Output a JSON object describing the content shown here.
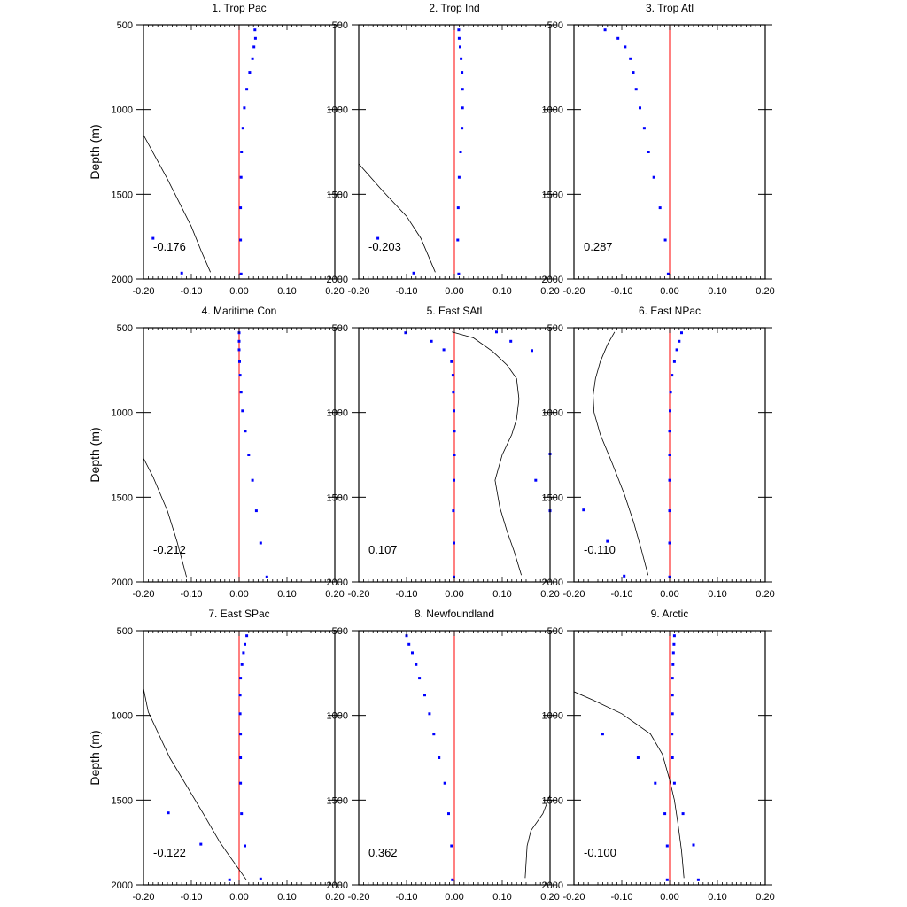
{
  "figure": {
    "ylabel": "Depth (m)",
    "colors": {
      "axes": "#000000",
      "dots": "#0000ff",
      "zero_line": "#ff0000",
      "curve": "#000000",
      "background": "#ffffff"
    },
    "xlim": [
      -0.2,
      0.2
    ],
    "ylim": [
      500,
      2000
    ],
    "y_inverted": true,
    "xticks": [
      "-0.20",
      "-0.10",
      "0.00",
      "0.10",
      "0.20"
    ],
    "yticks": [
      "500",
      "1000",
      "1500",
      "2000"
    ]
  },
  "chart_data": [
    {
      "type": "scatter",
      "title": "1. Trop Pac",
      "annotation": "-0.176",
      "dots": [
        [
          0.033,
          530
        ],
        [
          0.034,
          580
        ],
        [
          0.031,
          630
        ],
        [
          0.028,
          700
        ],
        [
          0.022,
          780
        ],
        [
          0.016,
          880
        ],
        [
          0.011,
          990
        ],
        [
          0.008,
          1110
        ],
        [
          0.005,
          1250
        ],
        [
          0.004,
          1400
        ],
        [
          0.003,
          1580
        ],
        [
          0.003,
          1770
        ],
        [
          0.004,
          1970
        ],
        [
          -0.18,
          1760
        ],
        [
          -0.12,
          1965
        ]
      ],
      "curve": [
        [
          -0.2,
          1150
        ],
        [
          -0.15,
          1410
        ],
        [
          -0.1,
          1690
        ],
        [
          -0.08,
          1830
        ],
        [
          -0.06,
          1960
        ]
      ]
    },
    {
      "type": "scatter",
      "title": "2. Trop Ind",
      "annotation": "-0.203",
      "dots": [
        [
          0.009,
          530
        ],
        [
          0.01,
          580
        ],
        [
          0.012,
          630
        ],
        [
          0.014,
          700
        ],
        [
          0.016,
          780
        ],
        [
          0.017,
          880
        ],
        [
          0.017,
          990
        ],
        [
          0.016,
          1110
        ],
        [
          0.013,
          1250
        ],
        [
          0.01,
          1400
        ],
        [
          0.008,
          1580
        ],
        [
          0.007,
          1770
        ],
        [
          0.009,
          1970
        ],
        [
          -0.16,
          1760
        ],
        [
          -0.085,
          1965
        ]
      ],
      "curve": [
        [
          -0.2,
          1320
        ],
        [
          -0.15,
          1480
        ],
        [
          -0.1,
          1630
        ],
        [
          -0.07,
          1760
        ],
        [
          -0.04,
          1960
        ]
      ]
    },
    {
      "type": "scatter",
      "title": "3. Trop Atl",
      "annotation": "0.287",
      "dots": [
        [
          -0.135,
          530
        ],
        [
          -0.108,
          580
        ],
        [
          -0.093,
          630
        ],
        [
          -0.082,
          700
        ],
        [
          -0.076,
          780
        ],
        [
          -0.07,
          880
        ],
        [
          -0.062,
          990
        ],
        [
          -0.053,
          1110
        ],
        [
          -0.044,
          1250
        ],
        [
          -0.033,
          1400
        ],
        [
          -0.02,
          1580
        ],
        [
          -0.009,
          1770
        ],
        [
          -0.003,
          1970
        ]
      ],
      "curve": []
    },
    {
      "type": "scatter",
      "title": "4. Maritime Con",
      "annotation": "-0.212",
      "dots": [
        [
          0.0,
          530
        ],
        [
          0.0,
          580
        ],
        [
          0.0,
          630
        ],
        [
          0.001,
          700
        ],
        [
          0.002,
          780
        ],
        [
          0.004,
          880
        ],
        [
          0.007,
          990
        ],
        [
          0.013,
          1110
        ],
        [
          0.02,
          1250
        ],
        [
          0.028,
          1400
        ],
        [
          0.036,
          1580
        ],
        [
          0.045,
          1770
        ],
        [
          0.058,
          1970
        ]
      ],
      "curve": [
        [
          -0.2,
          1270
        ],
        [
          -0.18,
          1380
        ],
        [
          -0.15,
          1580
        ],
        [
          -0.13,
          1760
        ],
        [
          -0.11,
          1970
        ]
      ]
    },
    {
      "type": "scatter",
      "title": "5. East SAtl",
      "annotation": "0.107",
      "dots": [
        [
          -0.102,
          530
        ],
        [
          -0.048,
          580
        ],
        [
          -0.022,
          630
        ],
        [
          -0.006,
          700
        ],
        [
          -0.003,
          780
        ],
        [
          -0.002,
          880
        ],
        [
          -0.001,
          990
        ],
        [
          0.0,
          1110
        ],
        [
          0.0,
          1250
        ],
        [
          -0.001,
          1400
        ],
        [
          -0.002,
          1580
        ],
        [
          -0.001,
          1770
        ],
        [
          -0.001,
          1970
        ],
        [
          0.088,
          525
        ],
        [
          0.118,
          580
        ],
        [
          0.162,
          635
        ],
        [
          0.2,
          1245
        ],
        [
          0.17,
          1400
        ],
        [
          0.2,
          1580
        ]
      ],
      "curve": [
        [
          -0.005,
          525
        ],
        [
          0.04,
          560
        ],
        [
          0.08,
          640
        ],
        [
          0.11,
          720
        ],
        [
          0.13,
          800
        ],
        [
          0.135,
          920
        ],
        [
          0.13,
          1040
        ],
        [
          0.12,
          1130
        ],
        [
          0.1,
          1250
        ],
        [
          0.085,
          1400
        ],
        [
          0.095,
          1560
        ],
        [
          0.11,
          1700
        ],
        [
          0.125,
          1820
        ],
        [
          0.14,
          1960
        ]
      ]
    },
    {
      "type": "scatter",
      "title": "6. East NPac",
      "annotation": "-0.110",
      "dots": [
        [
          0.025,
          530
        ],
        [
          0.02,
          580
        ],
        [
          0.015,
          630
        ],
        [
          0.01,
          700
        ],
        [
          0.005,
          780
        ],
        [
          0.002,
          880
        ],
        [
          0.001,
          990
        ],
        [
          0.0,
          1110
        ],
        [
          0.0,
          1250
        ],
        [
          0.0,
          1400
        ],
        [
          0.0,
          1580
        ],
        [
          0.0,
          1770
        ],
        [
          0.0,
          1970
        ],
        [
          -0.18,
          1575
        ],
        [
          -0.13,
          1760
        ],
        [
          -0.095,
          1965
        ]
      ],
      "curve": [
        [
          -0.115,
          525
        ],
        [
          -0.13,
          600
        ],
        [
          -0.145,
          700
        ],
        [
          -0.155,
          800
        ],
        [
          -0.16,
          900
        ],
        [
          -0.158,
          1000
        ],
        [
          -0.145,
          1130
        ],
        [
          -0.12,
          1300
        ],
        [
          -0.095,
          1480
        ],
        [
          -0.075,
          1650
        ],
        [
          -0.06,
          1800
        ],
        [
          -0.045,
          1960
        ]
      ]
    },
    {
      "type": "scatter",
      "title": "7. East SPac",
      "annotation": "-0.122",
      "dots": [
        [
          0.016,
          530
        ],
        [
          0.012,
          580
        ],
        [
          0.009,
          630
        ],
        [
          0.006,
          700
        ],
        [
          0.003,
          780
        ],
        [
          0.002,
          880
        ],
        [
          0.002,
          990
        ],
        [
          0.003,
          1110
        ],
        [
          0.003,
          1250
        ],
        [
          0.003,
          1400
        ],
        [
          0.005,
          1580
        ],
        [
          0.012,
          1770
        ],
        [
          0.045,
          1965
        ],
        [
          -0.148,
          1575
        ],
        [
          -0.08,
          1760
        ],
        [
          -0.02,
          1970
        ]
      ],
      "curve": [
        [
          -0.2,
          840
        ],
        [
          -0.19,
          980
        ],
        [
          -0.145,
          1250
        ],
        [
          -0.075,
          1580
        ],
        [
          -0.04,
          1750
        ],
        [
          0.015,
          1970
        ]
      ]
    },
    {
      "type": "scatter",
      "title": "8. Newfoundland",
      "annotation": "0.362",
      "dots": [
        [
          -0.1,
          530
        ],
        [
          -0.095,
          580
        ],
        [
          -0.088,
          630
        ],
        [
          -0.08,
          700
        ],
        [
          -0.073,
          780
        ],
        [
          -0.062,
          880
        ],
        [
          -0.052,
          990
        ],
        [
          -0.043,
          1110
        ],
        [
          -0.032,
          1250
        ],
        [
          -0.02,
          1400
        ],
        [
          -0.012,
          1580
        ],
        [
          -0.006,
          1770
        ],
        [
          -0.004,
          1970
        ]
      ],
      "curve": [
        [
          0.2,
          1470
        ],
        [
          0.185,
          1580
        ],
        [
          0.16,
          1680
        ],
        [
          0.152,
          1770
        ],
        [
          0.148,
          1960
        ]
      ]
    },
    {
      "type": "scatter",
      "title": "9. Arctic",
      "annotation": "-0.100",
      "dots": [
        [
          0.01,
          530
        ],
        [
          0.009,
          580
        ],
        [
          0.008,
          630
        ],
        [
          0.007,
          700
        ],
        [
          0.006,
          780
        ],
        [
          0.006,
          880
        ],
        [
          0.006,
          990
        ],
        [
          0.005,
          1110
        ],
        [
          0.006,
          1250
        ],
        [
          0.01,
          1400
        ],
        [
          0.028,
          1580
        ],
        [
          0.05,
          1765
        ],
        [
          0.06,
          1970
        ],
        [
          -0.14,
          1110
        ],
        [
          -0.066,
          1250
        ],
        [
          -0.03,
          1400
        ],
        [
          -0.01,
          1580
        ],
        [
          -0.005,
          1770
        ],
        [
          -0.005,
          1970
        ]
      ],
      "curve": [
        [
          -0.2,
          860
        ],
        [
          -0.16,
          910
        ],
        [
          -0.1,
          990
        ],
        [
          -0.04,
          1110
        ],
        [
          -0.015,
          1230
        ],
        [
          0.0,
          1380
        ],
        [
          0.01,
          1500
        ],
        [
          0.018,
          1650
        ],
        [
          0.025,
          1800
        ],
        [
          0.03,
          1960
        ]
      ]
    }
  ]
}
